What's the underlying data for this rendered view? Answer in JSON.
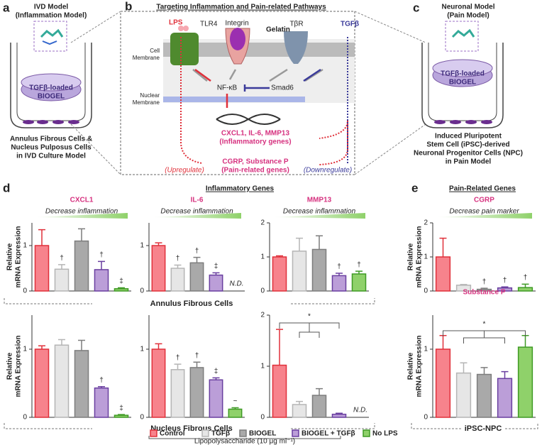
{
  "panel_a": {
    "letter": "a",
    "title": [
      "IVD Model",
      "(Inflammation Model)"
    ],
    "gel": [
      "TGFβ-loaded",
      "BIOGEL"
    ],
    "caption": [
      "Annulus Fibrous Cells &",
      "Nucleus Pulposus Cells",
      "in IVD Culture Model"
    ]
  },
  "panel_b": {
    "letter": "b",
    "title": "Targeting Inflammation and Pain-related Pathways",
    "lps": "LPS",
    "tlr4": "TLR4",
    "integrin": "Integrin",
    "gelatin": "Gelatin",
    "tbr": "TβR",
    "tgfb": "TGFβ",
    "cell_membrane": [
      "Cell",
      "Membrane"
    ],
    "nfkb": "NF-κB",
    "smad6": "Smad6",
    "nuclear_membrane": [
      "Nuclear",
      "Membrane"
    ],
    "inflam_genes": [
      "CXCL1, IL-6, MMP13",
      "(Inflammatory genes)"
    ],
    "pain_genes": [
      "CGRP, Substance P",
      "(Pain-related genes)"
    ],
    "up": "(Upregulate)",
    "down": "(Downregulate)"
  },
  "panel_c": {
    "letter": "c",
    "title": [
      "Neuronal Model",
      "(Pain Model)"
    ],
    "gel": [
      "TGFβ-loaded",
      "BIOGEL"
    ],
    "caption": [
      "Induced Pluripotent",
      "Stem Cell (iPSC)-derived",
      "Neuronal Progenitor Cells (NPC)",
      "in Pain Model"
    ]
  },
  "panel_d": {
    "letter": "d",
    "heading": "Inflammatory Genes",
    "row_labels": [
      "Annulus Fibrous Cells",
      "Nucleus Fibrous Cells"
    ]
  },
  "panel_e": {
    "letter": "e",
    "heading": "Pain-Related Genes",
    "row_label": "iPSC-NPC"
  },
  "legend": {
    "items": [
      {
        "name": "Control",
        "color": "#f7838c",
        "edge": "#e0303a"
      },
      {
        "name": "TGFβ",
        "color": "#e6e6e6",
        "edge": "#b5b5b5"
      },
      {
        "name": "BIOGEL",
        "color": "#a9a9a9",
        "edge": "#7d7d7d"
      },
      {
        "name": "BIOGEL + TGFβ",
        "color": "#bb9ed8",
        "edge": "#6a3fa0"
      },
      {
        "name": "No LPS",
        "color": "#8fd16a",
        "edge": "#3f9a25"
      }
    ],
    "lps": "Lipopolysaccharide (10 μg ml⁻¹)"
  },
  "chart_data": [
    {
      "type": "bar",
      "title": "CXCL1",
      "subtitle": "Decrease inflammation",
      "ylabel": [
        "Relative",
        "mRNA Expression"
      ],
      "values": [
        1.0,
        0.48,
        1.1,
        0.47,
        0.05
      ],
      "errors": [
        0.35,
        0.1,
        0.27,
        0.18,
        0.02
      ],
      "annotations": [
        null,
        "†",
        null,
        "†",
        "‡"
      ],
      "ylim": [
        0,
        1.5
      ],
      "yticks": [
        0,
        1
      ]
    },
    {
      "type": "bar",
      "title": "IL-6",
      "subtitle": "Decrease inflammation",
      "values": [
        1.0,
        0.5,
        0.62,
        0.35,
        null
      ],
      "errors": [
        0.06,
        0.07,
        0.12,
        0.05,
        null
      ],
      "annotations": [
        null,
        "†",
        "†",
        "‡",
        "N.D."
      ],
      "ylim": [
        0,
        1.5
      ],
      "yticks": [
        0,
        1
      ]
    },
    {
      "type": "bar",
      "title": "MMP13",
      "subtitle": "Decrease inflammation",
      "values": [
        1.0,
        1.17,
        1.22,
        0.45,
        0.5
      ],
      "errors": [
        0.03,
        0.38,
        0.4,
        0.07,
        0.08
      ],
      "annotations": [
        null,
        null,
        null,
        "†",
        "†"
      ],
      "ylim": [
        0,
        2
      ],
      "yticks": [
        0,
        1,
        2
      ]
    },
    {
      "type": "bar",
      "title": "CGRP",
      "subtitle": "Decrease pain marker",
      "ylabel": [
        "Relative",
        "mRNA Expression"
      ],
      "values": [
        1.0,
        0.17,
        0.05,
        0.09,
        0.1
      ],
      "errors": [
        0.55,
        0.02,
        0.03,
        0.03,
        0.1
      ],
      "annotations": [
        null,
        null,
        "†",
        "†",
        "†"
      ],
      "ylim": [
        0,
        2
      ],
      "yticks": [
        0,
        1,
        2
      ]
    },
    {
      "type": "bar",
      "ylabel": [
        "Relative",
        "mRNA Expression"
      ],
      "values": [
        1.0,
        1.06,
        0.98,
        0.43,
        0.03
      ],
      "errors": [
        0.05,
        0.08,
        0.15,
        0.02,
        0.01
      ],
      "annotations": [
        null,
        null,
        null,
        "†",
        "‡"
      ],
      "ylim": [
        0,
        1.5
      ],
      "yticks": [
        0,
        1
      ]
    },
    {
      "type": "bar",
      "values": [
        1.0,
        0.7,
        0.73,
        0.55,
        0.12
      ],
      "errors": [
        0.08,
        0.08,
        0.08,
        0.03,
        0.02
      ],
      "annotations": [
        null,
        "†",
        "†",
        "‡",
        "~"
      ],
      "ylim": [
        0,
        1.5
      ],
      "yticks": [
        0,
        1
      ]
    },
    {
      "type": "bar",
      "values": [
        1.02,
        0.25,
        0.43,
        0.06,
        null
      ],
      "errors": [
        0.7,
        0.06,
        0.13,
        0.02,
        null
      ],
      "annotations": [
        null,
        null,
        null,
        null,
        "N.D."
      ],
      "significance": "*",
      "ylim": [
        0,
        2
      ],
      "yticks": [
        0,
        1,
        2
      ]
    },
    {
      "type": "bar",
      "title": "Substance P",
      "ylabel": [
        "Relative",
        "mRNA Expression"
      ],
      "values": [
        1.0,
        0.65,
        0.63,
        0.57,
        1.03
      ],
      "errors": [
        0.2,
        0.15,
        0.1,
        0.1,
        0.17
      ],
      "annotations": [
        null,
        null,
        null,
        null,
        null
      ],
      "significance": "*",
      "ylim": [
        0,
        1.5
      ],
      "yticks": [
        0,
        1
      ]
    }
  ]
}
